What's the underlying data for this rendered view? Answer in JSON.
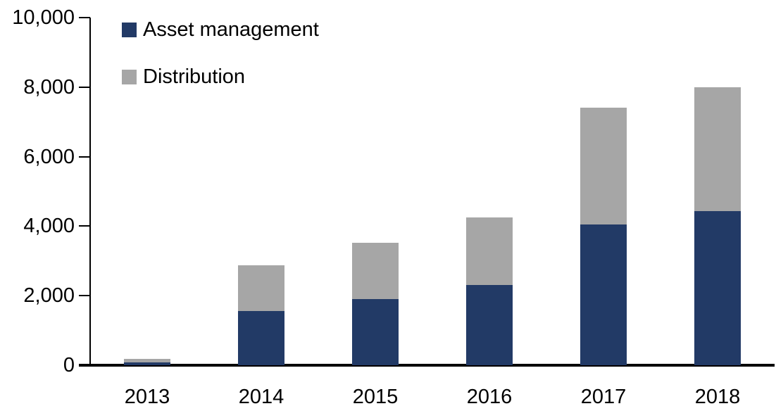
{
  "chart_data": {
    "type": "bar",
    "stacked": true,
    "title": "",
    "xlabel": "",
    "ylabel": "",
    "categories": [
      "2013",
      "2014",
      "2015",
      "2016",
      "2017",
      "2018"
    ],
    "series": [
      {
        "name": "Asset management",
        "color": "#223A66",
        "values": [
          75,
          1550,
          1900,
          2300,
          4050,
          4430
        ]
      },
      {
        "name": "Distribution",
        "color": "#A6A6A6",
        "values": [
          100,
          1320,
          1620,
          1950,
          3350,
          3570
        ]
      }
    ],
    "totals": [
      175,
      2870,
      3520,
      4250,
      7400,
      8000
    ],
    "ylim": [
      0,
      10000
    ],
    "ytick_step": 2000,
    "ytick_labels": [
      "0",
      "2,000",
      "4,000",
      "6,000",
      "8,000",
      "10,000"
    ],
    "grid": false,
    "legend_position": "top-left"
  },
  "colors": {
    "axis": "#000000",
    "text": "#000000",
    "background": "#FFFFFF",
    "asset_management": "#223A66",
    "distribution": "#A6A6A6"
  }
}
